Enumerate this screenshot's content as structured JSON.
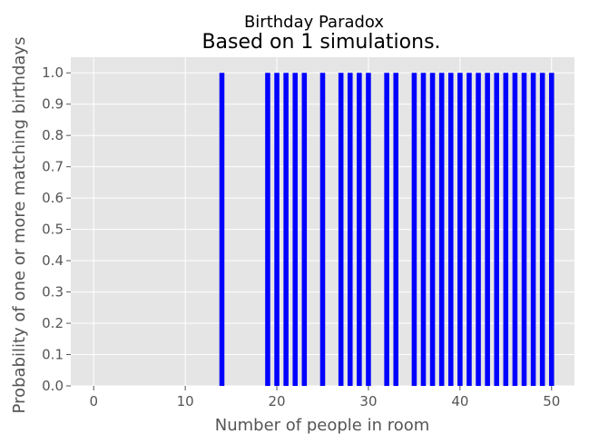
{
  "chart_data": {
    "type": "bar",
    "suptitle": "Birthday Paradox",
    "title": "Based on 1 simulations.",
    "xlabel": "Number of people in room",
    "ylabel": "Probability of one or more matching birthdays",
    "xlim": [
      -2.5,
      52.5
    ],
    "ylim": [
      0,
      1.05
    ],
    "xticks": [
      0,
      10,
      20,
      30,
      40,
      50
    ],
    "yticks": [
      0.0,
      0.1,
      0.2,
      0.3,
      0.4,
      0.5,
      0.6,
      0.7,
      0.8,
      0.9,
      1.0
    ],
    "x": [
      0,
      1,
      2,
      3,
      4,
      5,
      6,
      7,
      8,
      9,
      10,
      11,
      12,
      13,
      14,
      15,
      16,
      17,
      18,
      19,
      20,
      21,
      22,
      23,
      24,
      25,
      26,
      27,
      28,
      29,
      30,
      31,
      32,
      33,
      34,
      35,
      36,
      37,
      38,
      39,
      40,
      41,
      42,
      43,
      44,
      45,
      46,
      47,
      48,
      49,
      50
    ],
    "values": [
      0,
      0,
      0,
      0,
      0,
      0,
      0,
      0,
      0,
      0,
      0,
      0,
      0,
      0,
      1,
      0,
      0,
      0,
      0,
      1,
      1,
      1,
      1,
      1,
      0,
      1,
      0,
      1,
      1,
      1,
      1,
      0,
      1,
      1,
      0,
      1,
      1,
      1,
      1,
      1,
      1,
      1,
      1,
      1,
      1,
      1,
      1,
      1,
      1,
      1,
      1
    ],
    "bar_color": "#0000ff",
    "grid": true,
    "background_color": "#e5e5e5",
    "grid_color": "#ffffff"
  }
}
